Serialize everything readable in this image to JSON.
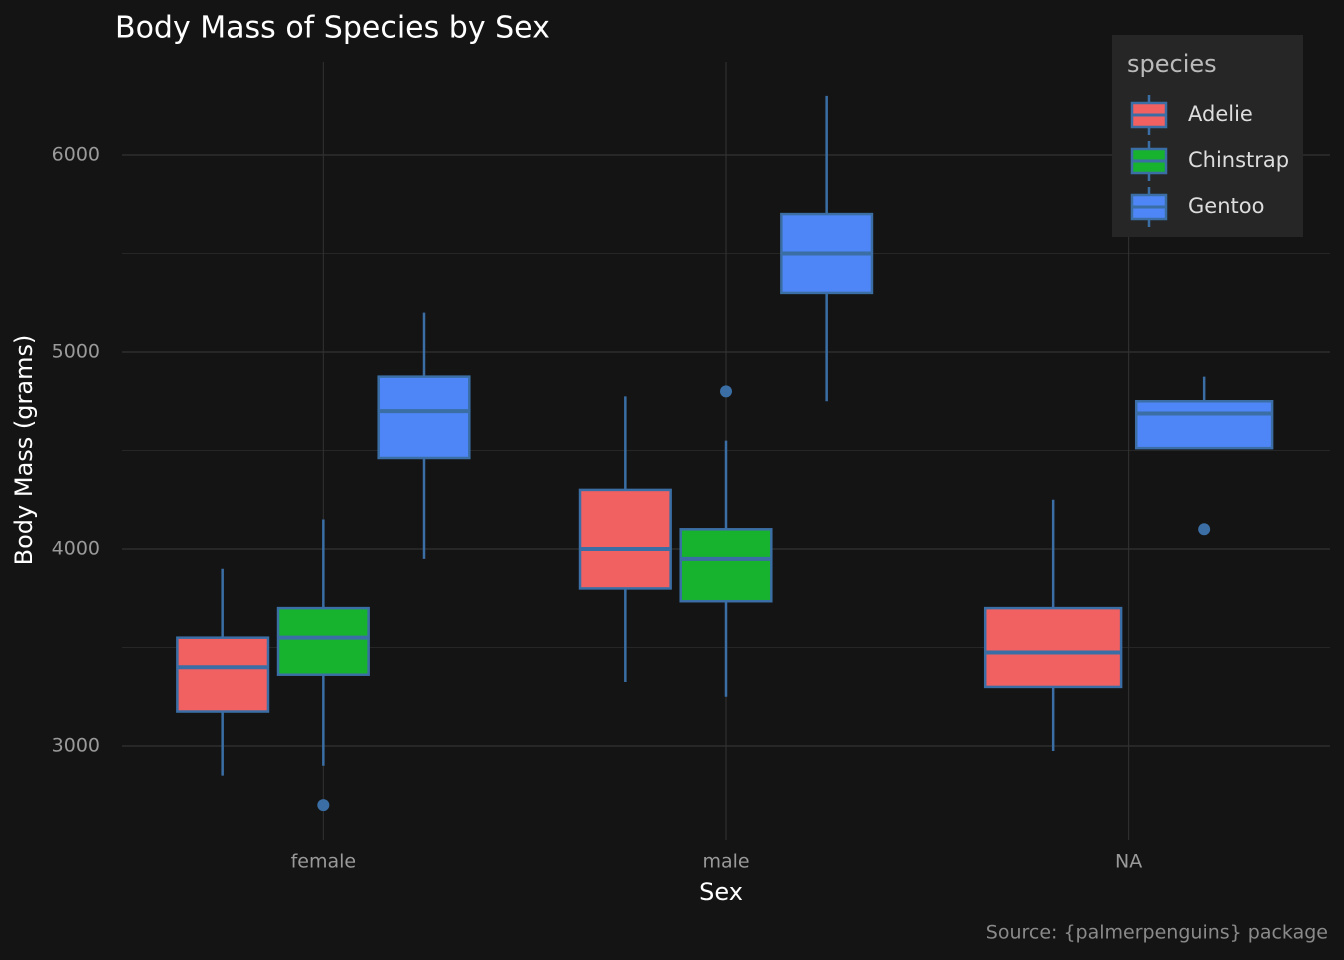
{
  "chart_data": {
    "type": "box",
    "title": "Body Mass of Species by Sex",
    "x_label": "Sex",
    "y_label": "Body Mass (grams)",
    "caption": "Source: {palmerpenguins} package",
    "categories": [
      "female",
      "male",
      "NA"
    ],
    "legend_title": "species",
    "legend_position": "top-right",
    "outline_color": "#3a6ea5",
    "series": [
      {
        "name": "Adelie",
        "color": "#f26161",
        "min": [
          2850,
          3325,
          2975
        ],
        "q1": [
          3175,
          3800,
          3300
        ],
        "median": [
          3400,
          4000,
          3475
        ],
        "q3": [
          3550,
          4300,
          3700
        ],
        "max": [
          3900,
          4775,
          4250
        ],
        "outliers": [
          [],
          [],
          []
        ]
      },
      {
        "name": "Chinstrap",
        "color": "#17b32f",
        "min": [
          2900,
          3250,
          null
        ],
        "q1": [
          3362,
          3735,
          null
        ],
        "median": [
          3550,
          3950,
          null
        ],
        "q3": [
          3700,
          4100,
          null
        ],
        "max": [
          4150,
          4550,
          null
        ],
        "outliers": [
          [
            2700
          ],
          [
            4800
          ],
          []
        ]
      },
      {
        "name": "Gentoo",
        "color": "#4f86f7",
        "min": [
          3950,
          4750,
          4512
        ],
        "q1": [
          4462,
          5300,
          4512
        ],
        "median": [
          4700,
          5500,
          4688
        ],
        "q3": [
          4875,
          5700,
          4750
        ],
        "max": [
          5200,
          6300,
          4875
        ],
        "outliers": [
          [],
          [],
          [
            4100
          ]
        ]
      }
    ],
    "ylim": [
      2523,
      6472
    ],
    "yticks": [
      3000,
      4000,
      5000,
      6000
    ],
    "grid": true
  }
}
